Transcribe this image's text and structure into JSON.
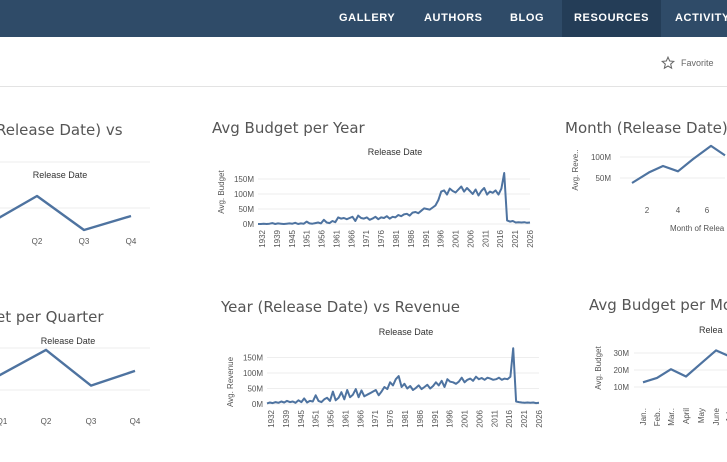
{
  "nav": {
    "items": [
      {
        "label": "GALLERY"
      },
      {
        "label": "AUTHORS"
      },
      {
        "label": "BLOG"
      },
      {
        "label": "RESOURCES"
      },
      {
        "label": "ACTIVITY"
      }
    ]
  },
  "toolbar": {
    "favorite_label": "Favorite"
  },
  "colors": {
    "header_bg": "#2f4b68",
    "line": "#4e73a0",
    "grid": "#eeeeee"
  },
  "icons": {
    "favorite": "star-outline-icon"
  },
  "views": [
    {
      "title": "Release Date) vs",
      "chart_data": {
        "type": "line",
        "title": "Release Date",
        "categories": [
          "Q1",
          "Q2",
          "Q3",
          "Q4"
        ],
        "x_tick_labels": [
          "",
          "Q2",
          "Q3",
          "Q4"
        ],
        "values": [
          0.35,
          0.62,
          0.28,
          0.42
        ]
      }
    },
    {
      "title": "Avg Budget per Year",
      "chart_data": {
        "type": "line",
        "title": "Release Date",
        "xlabel": "",
        "ylabel": "Avg. Budget",
        "ylim": [
          0,
          200
        ],
        "y_ticks": [
          "0M",
          "50M",
          "100M",
          "150M"
        ],
        "x_tick_labels": [
          "1932",
          "1939",
          "1945",
          "1951",
          "1956",
          "1961",
          "1966",
          "1971",
          "1976",
          "1981",
          "1986",
          "1991",
          "1996",
          "2001",
          "2006",
          "2011",
          "2016",
          "2021",
          "2026"
        ],
        "x": [
          1932,
          1933,
          1934,
          1935,
          1936,
          1937,
          1938,
          1939,
          1940,
          1941,
          1942,
          1943,
          1944,
          1945,
          1946,
          1947,
          1948,
          1949,
          1950,
          1951,
          1952,
          1953,
          1954,
          1955,
          1956,
          1957,
          1958,
          1959,
          1960,
          1961,
          1962,
          1963,
          1964,
          1965,
          1966,
          1967,
          1968,
          1969,
          1970,
          1971,
          1972,
          1973,
          1974,
          1975,
          1976,
          1977,
          1978,
          1979,
          1980,
          1981,
          1982,
          1983,
          1984,
          1985,
          1986,
          1987,
          1988,
          1989,
          1990,
          1991,
          1992,
          1993,
          1994,
          1995,
          1996,
          1997,
          1998,
          1999,
          2000,
          2001,
          2002,
          2003,
          2004,
          2005,
          2006,
          2007,
          2008,
          2009,
          2010,
          2011,
          2012,
          2013,
          2014,
          2015,
          2016,
          2017,
          2018,
          2019,
          2020,
          2021,
          2022,
          2023,
          2024,
          2025,
          2026,
          2027
        ],
        "values": [
          0,
          0,
          1,
          0,
          1,
          3,
          0,
          2,
          1,
          0,
          1,
          2,
          1,
          4,
          0,
          2,
          1,
          8,
          2,
          1,
          3,
          5,
          2,
          14,
          5,
          3,
          10,
          6,
          22,
          18,
          20,
          16,
          20,
          24,
          10,
          28,
          20,
          18,
          22,
          14,
          18,
          24,
          16,
          22,
          20,
          26,
          18,
          24,
          22,
          30,
          26,
          32,
          34,
          28,
          38,
          40,
          36,
          44,
          52,
          50,
          48,
          55,
          62,
          80,
          108,
          112,
          98,
          118,
          110,
          105,
          115,
          125,
          108,
          120,
          110,
          100,
          115,
          95,
          110,
          120,
          98,
          108,
          104,
          112,
          98,
          118,
          170,
          12,
          8,
          10,
          5,
          6,
          5,
          6,
          4,
          5
        ]
      }
    },
    {
      "title": "Month (Release Date) vs",
      "chart_data": {
        "type": "line",
        "title": "",
        "xlabel": "Month of Relea",
        "ylabel": "Avg. Reve..",
        "ylim": [
          0,
          130
        ],
        "y_ticks": [
          "50M",
          "100M"
        ],
        "x": [
          1,
          2,
          3,
          4,
          5,
          6,
          7
        ],
        "x_tick_labels": [
          "2",
          "4",
          "6"
        ],
        "values": [
          40,
          60,
          72,
          62,
          85,
          110,
          92
        ]
      }
    },
    {
      "title": "et per Quarter",
      "chart_data": {
        "type": "line",
        "title": "Release Date",
        "categories": [
          "Q1",
          "Q2",
          "Q3",
          "Q4"
        ],
        "x_tick_labels": [
          "Q1",
          "Q2",
          "Q3",
          "Q4"
        ],
        "values": [
          0.35,
          0.62,
          0.28,
          0.42
        ]
      }
    },
    {
      "title": "Year (Release Date) vs Revenue",
      "chart_data": {
        "type": "line",
        "title": "Release Date",
        "xlabel": "",
        "ylabel": "Avg. Revenue",
        "ylim": [
          0,
          200
        ],
        "y_ticks": [
          "0M",
          "50M",
          "100M",
          "150M"
        ],
        "x_tick_labels": [
          "1932",
          "1939",
          "1945",
          "1951",
          "1956",
          "1961",
          "1966",
          "1971",
          "1976",
          "1981",
          "1986",
          "1991",
          "1996",
          "2001",
          "2006",
          "2011",
          "2016",
          "2021",
          "2026"
        ],
        "x": [
          1932,
          1933,
          1934,
          1935,
          1936,
          1937,
          1938,
          1939,
          1940,
          1941,
          1942,
          1943,
          1944,
          1945,
          1946,
          1947,
          1948,
          1949,
          1950,
          1951,
          1952,
          1953,
          1954,
          1955,
          1956,
          1957,
          1958,
          1959,
          1960,
          1961,
          1962,
          1963,
          1964,
          1965,
          1966,
          1967,
          1968,
          1969,
          1970,
          1971,
          1972,
          1973,
          1974,
          1975,
          1976,
          1977,
          1978,
          1979,
          1980,
          1981,
          1982,
          1983,
          1984,
          1985,
          1986,
          1987,
          1988,
          1989,
          1990,
          1991,
          1992,
          1993,
          1994,
          1995,
          1996,
          1997,
          1998,
          1999,
          2000,
          2001,
          2002,
          2003,
          2004,
          2005,
          2006,
          2007,
          2008,
          2009,
          2010,
          2011,
          2012,
          2013,
          2014,
          2015,
          2016,
          2017,
          2018,
          2019,
          2020,
          2021,
          2022,
          2023,
          2024,
          2025,
          2026,
          2027
        ],
        "values": [
          2,
          5,
          3,
          6,
          4,
          8,
          5,
          10,
          6,
          8,
          4,
          12,
          6,
          18,
          5,
          10,
          8,
          28,
          10,
          6,
          15,
          20,
          10,
          40,
          12,
          20,
          38,
          15,
          45,
          22,
          30,
          48,
          22,
          44,
          25,
          30,
          35,
          40,
          45,
          28,
          40,
          55,
          48,
          70,
          60,
          80,
          90,
          55,
          65,
          50,
          58,
          45,
          52,
          60,
          48,
          55,
          62,
          50,
          58,
          70,
          60,
          75,
          55,
          80,
          72,
          70,
          65,
          72,
          85,
          70,
          78,
          82,
          75,
          88,
          80,
          84,
          78,
          85,
          82,
          78,
          80,
          85,
          78,
          82,
          80,
          88,
          180,
          8,
          6,
          5,
          4,
          5,
          4,
          5,
          3,
          4
        ]
      }
    },
    {
      "title": "Avg Budget per Mon",
      "chart_data": {
        "type": "line",
        "title": "Relea",
        "xlabel": "",
        "ylabel": "Avg. Budget",
        "ylim": [
          0,
          40
        ],
        "y_ticks": [
          "10M",
          "20M",
          "30M"
        ],
        "x_tick_labels": [
          "Jan..",
          "Feb..",
          "Mar..",
          "April",
          "May",
          "June",
          "July"
        ],
        "values": [
          15,
          18,
          24,
          19,
          28,
          37,
          33
        ]
      }
    }
  ]
}
